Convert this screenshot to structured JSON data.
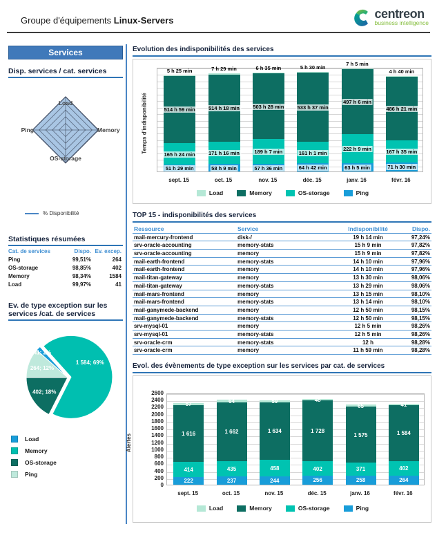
{
  "header": {
    "title_prefix": "Groupe d'équipements",
    "title_bold": "Linux-Servers",
    "logo_name": "centreon",
    "logo_tagline": "business intelligence"
  },
  "sidebar": {
    "banner": "Services",
    "radar_title": "Disp. services / cat. services",
    "radar_legend": "% Disponibilité",
    "stats_title": "Statistiques résumées",
    "stats_columns": [
      "Cat. de services",
      "Dispo.",
      "Ev. excep."
    ],
    "stats_rows": [
      [
        "Ping",
        "99,51%",
        "264"
      ],
      [
        "OS-storage",
        "98,85%",
        "402"
      ],
      [
        "Memory",
        "98,34%",
        "1584"
      ],
      [
        "Load",
        "99,97%",
        "41"
      ]
    ],
    "pie_title_line1": "Ev. de type exception sur les",
    "pie_title_line2": "services /cat. de services",
    "pie_legend": [
      "Load",
      "Memory",
      "OS-storage",
      "Ping"
    ]
  },
  "main": {
    "availability_title": "Evolution des indisponibilités des services",
    "top15_title": "TOP 15 - indisponibilités des services",
    "top15_columns": [
      "Ressource",
      "Service",
      "Indisponibilité",
      "Dispo."
    ],
    "top15_rows": [
      [
        "mail-mercury-frontend",
        "disk-/",
        "19 h 14 min",
        "97,24%"
      ],
      [
        "srv-oracle-accounting",
        "memory-stats",
        "15 h 9 min",
        "97,82%"
      ],
      [
        "srv-oracle-accounting",
        "memory",
        "15 h 9 min",
        "97,82%"
      ],
      [
        "mail-earth-frontend",
        "memory-stats",
        "14 h 10 min",
        "97,96%"
      ],
      [
        "mail-earth-frontend",
        "memory",
        "14 h 10 min",
        "97,96%"
      ],
      [
        "mail-titan-gateway",
        "memory",
        "13 h 30 min",
        "98,06%"
      ],
      [
        "mail-titan-gateway",
        "memory-stats",
        "13 h 29 min",
        "98,06%"
      ],
      [
        "mail-mars-frontend",
        "memory",
        "13 h 15 min",
        "98,10%"
      ],
      [
        "mail-mars-frontend",
        "memory-stats",
        "13 h 14 min",
        "98,10%"
      ],
      [
        "mail-ganymede-backend",
        "memory",
        "12 h 50 min",
        "98,15%"
      ],
      [
        "mail-ganymede-backend",
        "memory-stats",
        "12 h 50 min",
        "98,15%"
      ],
      [
        "srv-mysql-01",
        "memory",
        "12 h 5 min",
        "98,26%"
      ],
      [
        "srv-mysql-01",
        "memory-stats",
        "12 h 5 min",
        "98,26%"
      ],
      [
        "srv-oracle-crm",
        "memory-stats",
        "12 h",
        "98,28%"
      ],
      [
        "srv-oracle-crm",
        "memory",
        "11 h 59 min",
        "98,28%"
      ]
    ],
    "events_title": "Evol. des évènements de type exception sur les services par cat. de services"
  },
  "colors": {
    "load": "#b5e8d6",
    "memory": "#0d6e62",
    "os_storage": "#00c3b1",
    "ping": "#189dd9",
    "pie_memory": "#00bfb0",
    "pie_os_storage": "#0d6e62",
    "pie_ping": "#bfe9dc",
    "pie_load": "#189dd9",
    "accent_blue": "#2e75b6",
    "radar_fill": "#a9c6e4",
    "radar_stroke": "#55657e"
  },
  "chart_data": [
    {
      "id": "availability_radar",
      "type": "radar",
      "title": "Disp. services / cat. services",
      "axes": [
        "Load",
        "Memory",
        "OS-storage",
        "Ping"
      ],
      "values": [
        99.97,
        98.34,
        98.85,
        99.51
      ],
      "series_name": "% Disponibilité",
      "scale": [
        0,
        100
      ],
      "rings": 5
    },
    {
      "id": "availability_stacked",
      "type": "bar",
      "stacked": true,
      "title": "Evolution des indisponibilités des services",
      "ylabel": "Temps d'indisponibilité",
      "categories": [
        "sept. 15",
        "oct. 15",
        "nov. 15",
        "déc. 15",
        "janv. 16",
        "févr. 16"
      ],
      "ylim": [
        0,
        800
      ],
      "unit": "hours",
      "grid": true,
      "legend_order": [
        "Load",
        "Memory",
        "OS-storage",
        "Ping"
      ],
      "series": [
        {
          "name": "Ping",
          "values": [
            51.48,
            58.15,
            57.6,
            64.7,
            63.08,
            71.5
          ],
          "labels": [
            "51 h 29 min",
            "58 h 9 min",
            "57 h 36 min",
            "64 h 42 min",
            "63 h 5 min",
            "71 h 30 min"
          ]
        },
        {
          "name": "OS-storage",
          "values": [
            165.4,
            171.27,
            189.12,
            161.02,
            222.15,
            167.58
          ],
          "labels": [
            "165 h 24 min",
            "171 h 16 min",
            "189 h 7 min",
            "161 h 1 min",
            "222 h 9 min",
            "167 h 35 min"
          ]
        },
        {
          "name": "Memory",
          "values": [
            514.98,
            514.3,
            503.47,
            533.62,
            497.1,
            486.35
          ],
          "labels": [
            "514 h 59 min",
            "514 h 18 min",
            "503 h 28 min",
            "533 h 37 min",
            "497 h 6 min",
            "486 h 21 min"
          ]
        },
        {
          "name": "Load",
          "values": [
            5.42,
            7.48,
            6.58,
            5.5,
            7.08,
            4.67
          ],
          "labels": [
            "5 h 25 min",
            "7 h 29 min",
            "6 h 35 min",
            "5 h 30 min",
            "7 h 5 min",
            "4 h 40 min"
          ]
        }
      ]
    },
    {
      "id": "exceptions_pie",
      "type": "pie",
      "title": "Ev. de type exception sur les services /cat. de services",
      "labels": [
        "Memory",
        "OS-storage",
        "Ping",
        "Load"
      ],
      "values": [
        1584,
        402,
        264,
        41
      ],
      "slice_labels": [
        "1 584; 69%",
        "402; 18%",
        "264; 12%",
        "41; 2%"
      ],
      "start_angle_deg": -42,
      "legend_order": [
        "Load",
        "Memory",
        "OS-storage",
        "Ping"
      ]
    },
    {
      "id": "events_stacked",
      "type": "bar",
      "stacked": true,
      "title": "Evol. des évènements de type exception sur les services par cat. de services",
      "ylabel": "Alertes",
      "categories": [
        "sept. 15",
        "oct. 15",
        "nov. 15",
        "déc. 15",
        "janv. 16",
        "févr. 16"
      ],
      "ylim": [
        0,
        2600
      ],
      "ytick_step": 200,
      "grid": true,
      "legend_order": [
        "Load",
        "Memory",
        "OS-storage",
        "Ping"
      ],
      "series": [
        {
          "name": "Ping",
          "values": [
            222,
            237,
            244,
            256,
            258,
            264
          ],
          "labels": [
            "222",
            "237",
            "244",
            "256",
            "258",
            "264"
          ]
        },
        {
          "name": "OS-storage",
          "values": [
            414,
            435,
            458,
            402,
            371,
            402
          ],
          "labels": [
            "414",
            "435",
            "458",
            "402",
            "371",
            "402"
          ]
        },
        {
          "name": "Memory",
          "values": [
            1616,
            1662,
            1634,
            1728,
            1575,
            1584
          ],
          "labels": [
            "1 616",
            "1 662",
            "1 634",
            "1 728",
            "1 575",
            "1 584"
          ]
        },
        {
          "name": "Load",
          "values": [
            57,
            64,
            59,
            48,
            65,
            41
          ],
          "labels": [
            "57",
            "64",
            "59",
            "48",
            "65",
            "41"
          ]
        }
      ]
    }
  ]
}
